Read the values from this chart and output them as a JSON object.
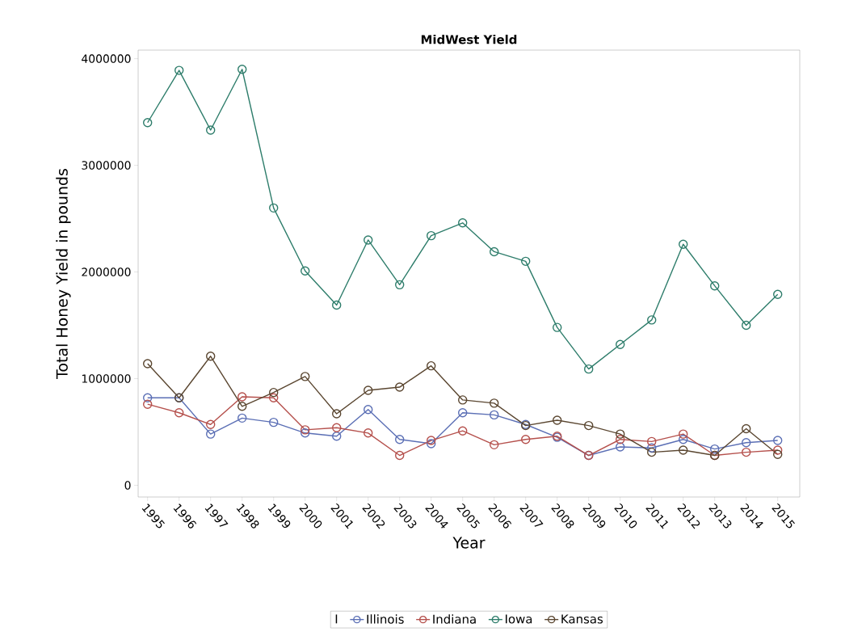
{
  "chart_data": {
    "type": "line",
    "title": "MidWest Yield",
    "xlabel": "Year",
    "ylabel": "Total Honey Yield in pounds",
    "legend_title": "I",
    "categories": [
      "1995",
      "1996",
      "1997",
      "1998",
      "1999",
      "2000",
      "2001",
      "2002",
      "2003",
      "2004",
      "2005",
      "2006",
      "2007",
      "2008",
      "2009",
      "2010",
      "2011",
      "2012",
      "2013",
      "2014",
      "2015"
    ],
    "series": [
      {
        "name": "Illinois",
        "color": "#5b6fb5",
        "values": [
          820000,
          820000,
          480000,
          630000,
          590000,
          490000,
          460000,
          710000,
          430000,
          390000,
          680000,
          660000,
          570000,
          450000,
          280000,
          360000,
          350000,
          430000,
          340000,
          400000,
          420000
        ]
      },
      {
        "name": "Indiana",
        "color": "#b5504c",
        "values": [
          760000,
          680000,
          570000,
          830000,
          820000,
          520000,
          540000,
          490000,
          280000,
          420000,
          510000,
          380000,
          430000,
          460000,
          280000,
          430000,
          410000,
          480000,
          280000,
          310000,
          330000
        ]
      },
      {
        "name": "Iowa",
        "color": "#2e7d6b",
        "values": [
          3400000,
          3890000,
          3330000,
          3900000,
          2600000,
          2010000,
          1690000,
          2300000,
          1880000,
          2340000,
          2460000,
          2190000,
          2100000,
          1480000,
          1090000,
          1320000,
          1550000,
          2260000,
          1870000,
          1500000,
          1790000
        ]
      },
      {
        "name": "Kansas",
        "color": "#5a4630",
        "values": [
          1140000,
          820000,
          1210000,
          740000,
          870000,
          1020000,
          670000,
          890000,
          920000,
          1120000,
          800000,
          770000,
          560000,
          610000,
          560000,
          480000,
          310000,
          330000,
          280000,
          530000,
          290000
        ]
      }
    ],
    "ylim": [
      -110000,
      4080000
    ],
    "yticks": [
      0,
      1000000,
      2000000,
      3000000,
      4000000
    ],
    "grid": false,
    "legend": "bottom",
    "marker": "circle",
    "line_style": "solid"
  }
}
